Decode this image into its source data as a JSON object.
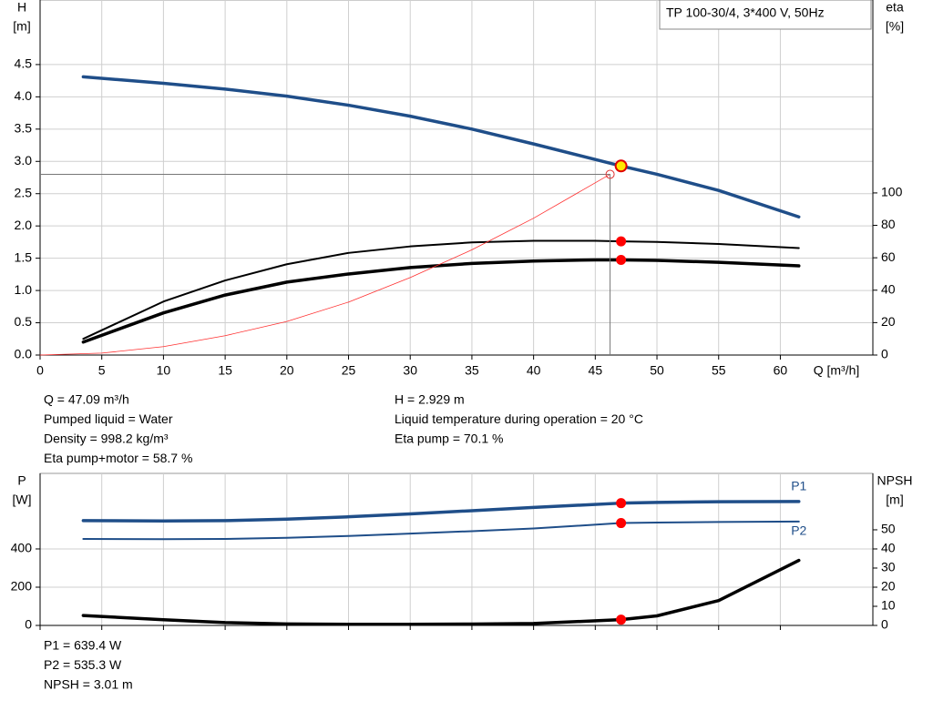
{
  "chart_data": [
    {
      "type": "line",
      "title": "TP 100-30/4, 3*400 V, 50Hz",
      "ylabel": [
        "H",
        "[m]"
      ],
      "y2label": [
        "eta",
        "[%]"
      ],
      "xlabel": "Q [m³/h]",
      "xlim": [
        0,
        67.5
      ],
      "xticks": [
        0,
        5,
        10,
        15,
        20,
        25,
        30,
        35,
        40,
        45,
        50,
        55,
        60
      ],
      "xtick_labels": true,
      "ylim": [
        0,
        5.5
      ],
      "yticks": [
        {
          "value": 0,
          "label": "0.0"
        },
        0.5,
        {
          "value": 1,
          "label": "1.0"
        },
        1.5,
        {
          "value": 2,
          "label": "2.0"
        },
        2.5,
        {
          "value": 3,
          "label": "3.0"
        },
        3.5,
        {
          "value": 4,
          "label": "4.0"
        },
        4.5
      ],
      "y2lim": [
        0,
        219
      ],
      "y2ticks": [
        0,
        20,
        40,
        60,
        80,
        100
      ],
      "grid": true,
      "series": [
        {
          "color": "#1f4e89",
          "style": "thick",
          "x": [
            3.5,
            10,
            15,
            20,
            25,
            30,
            35,
            40,
            45,
            47.09,
            50,
            55,
            61.5
          ],
          "values": [
            4.31,
            4.21,
            4.12,
            4.01,
            3.87,
            3.7,
            3.5,
            3.27,
            3.03,
            2.929,
            2.8,
            2.55,
            2.14
          ]
        },
        {
          "color": "#000000",
          "style": "medium",
          "axis": "y2",
          "x": [
            3.5,
            10,
            15,
            20,
            25,
            30,
            35,
            40,
            45,
            47.09,
            50,
            55,
            61.5
          ],
          "values": [
            10,
            33,
            46,
            56,
            63,
            67,
            69.5,
            70.5,
            70.5,
            70.1,
            69.8,
            68.5,
            66
          ]
        },
        {
          "color": "#000000",
          "style": "thick",
          "axis": "y2",
          "x": [
            3.5,
            10,
            15,
            20,
            25,
            30,
            35,
            40,
            45,
            47.09,
            50,
            55,
            61.5
          ],
          "values": [
            8,
            26,
            37,
            45,
            50,
            54,
            56.5,
            58,
            58.7,
            58.7,
            58.4,
            57.2,
            55
          ]
        },
        {
          "color": "#ff3030",
          "style": "thin",
          "x": [
            0,
            5,
            10,
            15,
            20,
            25,
            30,
            35,
            40,
            46.2
          ],
          "values": [
            0,
            0.03,
            0.13,
            0.3,
            0.52,
            0.82,
            1.2,
            1.63,
            2.12,
            2.8
          ]
        }
      ],
      "markers": [
        {
          "x": 46.2,
          "y": 2.8,
          "style": "hollow",
          "color": "#e03030",
          "guides": true
        },
        {
          "x": 47.09,
          "y": 2.929,
          "style": "outlined",
          "color": "#ffe800"
        },
        {
          "x": 47.09,
          "y": 70.1,
          "axis": "y2",
          "color": "#ff0000"
        },
        {
          "x": 47.09,
          "y": 58.7,
          "axis": "y2",
          "color": "#ff0000"
        }
      ],
      "readout": {
        "left": [
          "Q = 47.09 m³/h",
          "Pumped liquid = Water",
          "Density = 998.2 kg/m³",
          "Eta pump+motor = 58.7 %"
        ],
        "right": [
          "H = 2.929 m",
          "Liquid temperature during operation = 20 °C",
          "Eta pump = 70.1 %"
        ]
      }
    },
    {
      "type": "line",
      "ylabel": [
        "P",
        "[W]"
      ],
      "y2label": [
        "NPSH",
        "[m]"
      ],
      "xlim": [
        0,
        67.5
      ],
      "xticks": [
        0,
        5,
        10,
        15,
        20,
        25,
        30,
        35,
        40,
        45,
        50,
        55,
        60
      ],
      "xtick_labels": false,
      "ylim": [
        0,
        795
      ],
      "yticks": [
        0,
        200,
        400
      ],
      "y2lim": [
        0,
        79.5
      ],
      "y2ticks": [
        0,
        10,
        20,
        30,
        40,
        50
      ],
      "grid": true,
      "series": [
        {
          "name": "P1",
          "color": "#1f4e89",
          "style": "thick",
          "x": [
            3.5,
            10,
            15,
            20,
            25,
            30,
            35,
            40,
            47.09,
            50,
            55,
            61.5
          ],
          "values": [
            548,
            546,
            548,
            556,
            568,
            583,
            600,
            617,
            639.4,
            643,
            647,
            648
          ]
        },
        {
          "name": "P2",
          "color": "#1f4e89",
          "style": "medium",
          "x": [
            3.5,
            10,
            15,
            20,
            25,
            30,
            35,
            40,
            47.09,
            50,
            55,
            61.5
          ],
          "values": [
            452,
            451,
            452,
            458,
            468,
            480,
            493,
            507,
            535.3,
            538,
            541,
            543
          ]
        },
        {
          "color": "#000000",
          "style": "thick",
          "axis": "y2",
          "x": [
            3.5,
            10,
            15,
            20,
            25,
            30,
            35,
            40,
            47.09,
            50,
            55,
            61.5
          ],
          "values": [
            5.2,
            3,
            1.5,
            0.8,
            0.6,
            0.6,
            0.7,
            1.0,
            3.01,
            5,
            13,
            34
          ]
        }
      ],
      "markers": [
        {
          "x": 47.09,
          "y": 639.4,
          "color": "#ff0000"
        },
        {
          "x": 47.09,
          "y": 535.3,
          "color": "#ff0000"
        },
        {
          "x": 47.09,
          "y": 3.01,
          "axis": "y2",
          "color": "#ff0000"
        }
      ],
      "readout": {
        "left": [
          "P1 = 639.4 W",
          "P2 = 535.3 W",
          "NPSH = 3.01 m"
        ]
      }
    }
  ]
}
